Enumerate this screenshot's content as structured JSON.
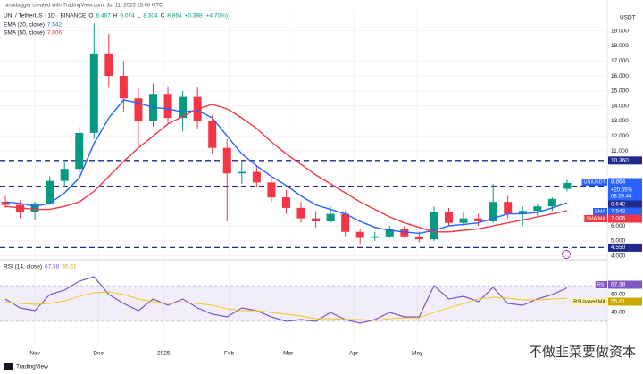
{
  "credit": "ranadagger created with TradingView.com, Jul 11, 2025 15:00 UTC",
  "currency": "USDT",
  "brand": "TradingView",
  "watermark": "不做韭菜要做资本",
  "chart_data": [
    {
      "type": "candlestick",
      "title": "UNI / TetherUS · 1D · BINANCE",
      "symbol": "UNIUSDT",
      "ohlc_labels": [
        "O",
        "H",
        "L",
        "C"
      ],
      "change": "+0.398 (+4.70%)",
      "last_change": "+20.65%",
      "countdown": "08:59:44",
      "categories": [
        null,
        null,
        null,
        null,
        null,
        null,
        null,
        null,
        null,
        null,
        null,
        null,
        null,
        null,
        null,
        null,
        null,
        null,
        null,
        null,
        null,
        null,
        null,
        null,
        null,
        null,
        null,
        null,
        null,
        null,
        null,
        null,
        null,
        null,
        null,
        null,
        null,
        null,
        null
      ],
      "open": [
        7.6,
        7.4,
        6.9,
        7.5,
        9.0,
        9.8,
        12.2,
        17.5,
        16.0,
        14.5,
        13.0,
        14.8,
        13.2,
        14.6,
        13.0,
        11.2,
        9.5,
        9.6,
        8.9,
        7.9,
        7.2,
        6.5,
        6.3,
        6.8,
        5.6,
        5.2,
        5.3,
        5.8,
        5.3,
        5.1,
        6.9,
        6.2,
        6.5,
        6.3,
        7.6,
        6.8,
        7.0,
        7.3,
        8.467
      ],
      "high": [
        8.0,
        7.7,
        7.6,
        9.3,
        10.2,
        12.6,
        19.5,
        18.8,
        17.0,
        15.2,
        15.5,
        15.3,
        15.0,
        15.3,
        13.4,
        11.8,
        10.3,
        10.0,
        9.1,
        8.4,
        7.6,
        7.0,
        7.3,
        7.0,
        5.8,
        5.6,
        6.0,
        6.0,
        5.6,
        7.3,
        7.2,
        6.9,
        6.8,
        8.8,
        8.0,
        7.3,
        7.5,
        7.9,
        9.074
      ],
      "low": [
        7.2,
        6.5,
        6.4,
        7.4,
        8.6,
        9.5,
        11.8,
        15.2,
        13.6,
        11.3,
        12.6,
        12.8,
        12.3,
        12.5,
        10.8,
        6.3,
        8.8,
        8.6,
        7.6,
        6.8,
        6.2,
        5.9,
        6.2,
        5.3,
        4.8,
        5.0,
        5.2,
        5.2,
        4.9,
        5.0,
        6.0,
        6.0,
        6.0,
        6.2,
        6.5,
        6.0,
        6.6,
        7.0,
        8.304
      ],
      "close": [
        7.4,
        6.9,
        7.5,
        9.0,
        9.8,
        12.2,
        17.5,
        16.0,
        14.5,
        13.0,
        14.8,
        13.2,
        14.6,
        13.0,
        11.2,
        9.5,
        9.6,
        8.9,
        7.9,
        7.2,
        6.5,
        6.3,
        6.8,
        5.6,
        5.2,
        5.3,
        5.8,
        5.3,
        5.1,
        6.9,
        6.2,
        6.5,
        6.3,
        7.6,
        6.8,
        7.0,
        7.3,
        7.8,
        8.864
      ],
      "up_color": "#089981",
      "down_color": "#f23645",
      "lines": [
        {
          "name": "EMA (20, close)",
          "tag": "EMA",
          "color": "#2962ff",
          "values": [
            7.6,
            7.5,
            7.3,
            7.5,
            8.2,
            9.2,
            11.5,
            13.2,
            14.4,
            14.2,
            13.9,
            13.8,
            13.6,
            13.7,
            13.2,
            12.0,
            10.8,
            10.0,
            9.3,
            8.7,
            8.0,
            7.4,
            7.1,
            6.8,
            6.3,
            5.9,
            5.7,
            5.6,
            5.5,
            5.7,
            6.0,
            6.1,
            6.2,
            6.5,
            6.8,
            6.8,
            6.9,
            7.2,
            7.542
          ]
        },
        {
          "name": "SMA (50, close)",
          "tag": "SMA:MA",
          "color": "#f23645",
          "values": [
            7.3,
            7.2,
            7.1,
            7.1,
            7.3,
            7.6,
            8.3,
            9.3,
            10.3,
            11.2,
            12.0,
            12.8,
            13.3,
            13.8,
            14.1,
            13.8,
            13.2,
            12.5,
            11.6,
            10.8,
            10.1,
            9.4,
            8.8,
            8.2,
            7.6,
            7.1,
            6.6,
            6.2,
            5.9,
            5.6,
            5.6,
            5.7,
            5.8,
            6.0,
            6.2,
            6.4,
            6.6,
            6.8,
            7.006
          ]
        }
      ],
      "levels": [
        {
          "value": 10.36,
          "label": "10.360"
        },
        {
          "value": 8.642,
          "label": "8.642"
        },
        {
          "value": 4.55,
          "label": "4.550"
        }
      ],
      "ylim": [
        3.8,
        20.35
      ],
      "yticks": [
        {
          "value": 19,
          "label": "19.000"
        },
        {
          "value": 18,
          "label": "18.000"
        },
        {
          "value": 17,
          "label": "17.000"
        },
        {
          "value": 16,
          "label": "16.000"
        },
        {
          "value": 15,
          "label": "15.000"
        },
        {
          "value": 14,
          "label": "14.000"
        },
        {
          "value": 13,
          "label": "13.000"
        },
        {
          "value": 12,
          "label": "12.000"
        },
        {
          "value": 11,
          "label": "11.000"
        },
        {
          "value": 6,
          "label": "6.000"
        },
        {
          "value": 5,
          "label": "5.000"
        },
        {
          "value": 4,
          "label": "4.000"
        }
      ],
      "grid": true
    },
    {
      "type": "line",
      "title": "RSI (14, close)",
      "series": [
        {
          "name": "RSI",
          "color": "#7e57c2",
          "values": [
            55,
            45,
            42,
            60,
            65,
            75,
            80,
            60,
            50,
            42,
            55,
            48,
            55,
            45,
            38,
            35,
            45,
            42,
            35,
            30,
            32,
            30,
            40,
            32,
            28,
            32,
            40,
            35,
            35,
            70,
            55,
            58,
            52,
            68,
            50,
            48,
            55,
            60,
            67.38
          ]
        },
        {
          "name": "RSI-based MA",
          "color": "#f0c419",
          "values": [
            52,
            50,
            49,
            50,
            53,
            58,
            62,
            63,
            60,
            55,
            52,
            50,
            51,
            50,
            48,
            44,
            42,
            42,
            40,
            38,
            36,
            33,
            33,
            32,
            32,
            31,
            33,
            34,
            34,
            40,
            45,
            50,
            55,
            57,
            56,
            54,
            54,
            55,
            55.61
          ]
        }
      ],
      "band": [
        30,
        70
      ],
      "ylim": [
        2,
        97
      ],
      "yticks": [
        {
          "value": 60,
          "label": "60.00"
        },
        {
          "value": 40,
          "label": "40.00"
        }
      ],
      "xticks": [
        {
          "value": 2,
          "label": "Nov"
        },
        {
          "value": 6.29,
          "label": "Dec"
        },
        {
          "value": 10.71,
          "label": "2025"
        },
        {
          "value": 15.14,
          "label": "Feb"
        },
        {
          "value": 19.14,
          "label": "Mar"
        },
        {
          "value": 23.57,
          "label": "Apr"
        },
        {
          "value": 27.86,
          "label": "May"
        }
      ]
    }
  ]
}
